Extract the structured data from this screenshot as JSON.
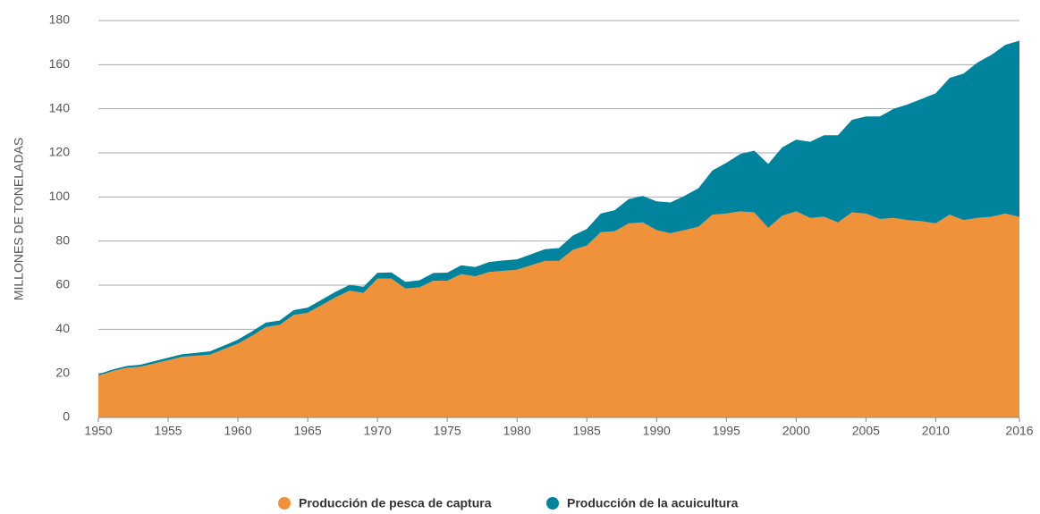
{
  "chart_data": {
    "type": "stacked_area",
    "y_label": "MILLONES DE TONELADAS",
    "x": [
      1950,
      1951,
      1952,
      1953,
      1954,
      1955,
      1956,
      1957,
      1958,
      1959,
      1960,
      1961,
      1962,
      1963,
      1964,
      1965,
      1966,
      1967,
      1968,
      1969,
      1970,
      1971,
      1972,
      1973,
      1974,
      1975,
      1976,
      1977,
      1978,
      1979,
      1980,
      1981,
      1982,
      1983,
      1984,
      1985,
      1986,
      1987,
      1988,
      1989,
      1990,
      1991,
      1992,
      1993,
      1994,
      1995,
      1996,
      1997,
      1998,
      1999,
      2000,
      2001,
      2002,
      2003,
      2004,
      2005,
      2006,
      2007,
      2008,
      2009,
      2010,
      2011,
      2012,
      2013,
      2014,
      2015,
      2016
    ],
    "series": [
      {
        "name": "Producción de pesca de captura",
        "color": "#f0923a",
        "values": [
          19,
          21,
          22.5,
          23,
          24.5,
          26,
          27.5,
          28,
          28.5,
          31,
          33.5,
          37,
          41,
          42,
          46.5,
          47.5,
          51,
          54.5,
          57.5,
          56.5,
          63,
          63,
          58.5,
          59,
          62,
          62,
          65,
          64,
          66,
          66.5,
          67,
          69,
          71,
          71,
          76,
          78,
          84,
          84.5,
          88,
          88.5,
          85,
          83.5,
          85,
          86.5,
          92,
          92.5,
          93.5,
          93,
          86,
          91.5,
          93.5,
          90.5,
          91,
          88.5,
          93,
          92.5,
          90,
          90.5,
          89.5,
          89,
          88,
          92,
          89.5,
          90.5,
          91,
          92.5,
          90.9
        ]
      },
      {
        "name": "Producción de la acuicultura",
        "color": "#00849e",
        "values": [
          0.6,
          0.7,
          0.8,
          0.9,
          1,
          1.1,
          1.2,
          1.3,
          1.5,
          1.6,
          1.8,
          2,
          2,
          2,
          2.2,
          2.3,
          2.4,
          2.5,
          2.6,
          2.8,
          2.6,
          2.8,
          3,
          3.2,
          3.5,
          3.7,
          4,
          4.2,
          4.5,
          4.7,
          4.7,
          5,
          5.3,
          5.8,
          6.5,
          7.5,
          8.5,
          9.5,
          11,
          12,
          13,
          14,
          15.5,
          17.5,
          20,
          23,
          26,
          28,
          29,
          31,
          32.5,
          34.5,
          37,
          39.5,
          42,
          44,
          46.5,
          49.5,
          52.5,
          55.5,
          59,
          62,
          66.5,
          70.5,
          73.5,
          76.5,
          80
        ]
      }
    ],
    "xlim": [
      1950,
      2016
    ],
    "xticks": [
      1950,
      1955,
      1960,
      1965,
      1970,
      1975,
      1980,
      1985,
      1990,
      1995,
      2000,
      2005,
      2010,
      2016
    ],
    "ylim": [
      0,
      180
    ],
    "yticks": [
      0,
      20,
      40,
      60,
      80,
      100,
      120,
      140,
      160,
      180
    ],
    "grid": true,
    "legend": "bottom"
  }
}
